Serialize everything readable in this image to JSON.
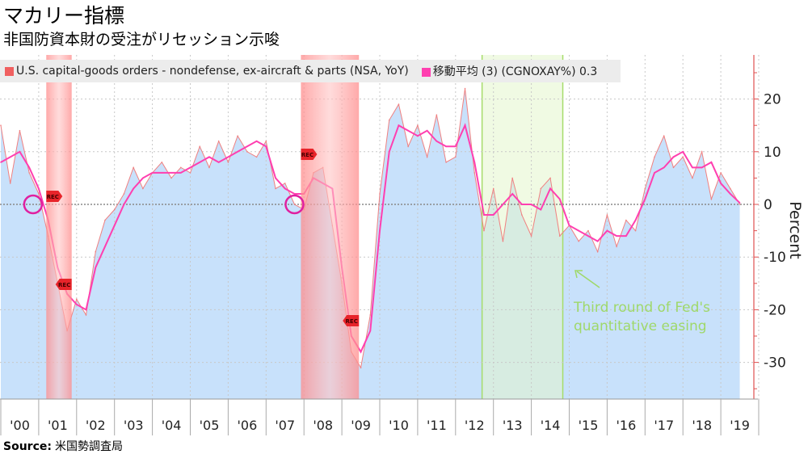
{
  "title": "マカリー指標",
  "subtitle": "非国防資本財の受注がリセッション示唆",
  "source_label": "Source:",
  "source": "米国勢調査局",
  "colors": {
    "raw_line": "#f08080",
    "ma_line": "#ff3fb0",
    "area": "#c8e1fb",
    "recession": "#ff9a9a",
    "qe": "#e4f5cc",
    "qe_border": "#a6dc6a",
    "axis": "#e05050",
    "annotation": "#9fd86a",
    "circle": "#e020a0"
  },
  "chart_data": {
    "type": "line",
    "ylabel": "Percent",
    "ylim": [
      -37,
      28
    ],
    "xlim": [
      2000,
      2019.9
    ],
    "grid": true,
    "legend_position": "top-left",
    "yticks": [
      20,
      10,
      0,
      -10,
      -20,
      -30
    ],
    "xtick_labels": [
      "'00",
      "'01",
      "'02",
      "'03",
      "'04",
      "'05",
      "'06",
      "'07",
      "'08",
      "'09",
      "'10",
      "'11",
      "'12",
      "'13",
      "'14",
      "'15",
      "'16",
      "'17",
      "'18",
      "'19"
    ],
    "x": [
      2000,
      2000.25,
      2000.5,
      2000.75,
      2001,
      2001.25,
      2001.5,
      2001.75,
      2002,
      2002.25,
      2002.5,
      2002.75,
      2003,
      2003.25,
      2003.5,
      2003.75,
      2004,
      2004.25,
      2004.5,
      2004.75,
      2005,
      2005.25,
      2005.5,
      2005.75,
      2006,
      2006.25,
      2006.5,
      2006.75,
      2007,
      2007.25,
      2007.5,
      2007.75,
      2008,
      2008.25,
      2008.5,
      2008.75,
      2009,
      2009.25,
      2009.5,
      2009.75,
      2010,
      2010.25,
      2010.5,
      2010.75,
      2011,
      2011.25,
      2011.5,
      2011.75,
      2012,
      2012.25,
      2012.5,
      2012.75,
      2013,
      2013.25,
      2013.5,
      2013.75,
      2014,
      2014.25,
      2014.5,
      2014.75,
      2015,
      2015.25,
      2015.5,
      2015.75,
      2016,
      2016.25,
      2016.5,
      2016.75,
      2017,
      2017.25,
      2017.5,
      2017.75,
      2018,
      2018.25,
      2018.5,
      2018.75,
      2019,
      2019.25,
      2019.5
    ],
    "series": [
      {
        "name": "U.S. capital-goods orders - nondefense, ex-aircraft & parts (NSA, YoY)",
        "values": [
          15,
          4,
          14,
          6,
          2,
          -6,
          -15,
          -24,
          -18,
          -21,
          -9,
          -3,
          -1,
          2,
          7,
          3,
          6,
          8,
          5,
          7,
          6,
          11,
          7,
          12,
          8,
          13,
          10,
          9,
          12,
          3,
          4,
          0,
          -1,
          6,
          7,
          -4,
          -15,
          -28,
          -31,
          -21,
          2,
          16,
          19,
          11,
          15,
          9,
          17,
          8,
          9,
          22,
          6,
          -5,
          3,
          -7,
          5,
          -2,
          -6,
          3,
          5,
          -6,
          -4,
          -7,
          -5,
          -9,
          -2,
          -8,
          -3,
          -5,
          3,
          9,
          13,
          7,
          9,
          5,
          10,
          1,
          6,
          3,
          0
        ]
      },
      {
        "name": "移動平均 (3) (CGNOXAY%) 0.3",
        "values": [
          8,
          9,
          10,
          7,
          3,
          -3,
          -12,
          -17,
          -19,
          -20,
          -12,
          -8,
          -4,
          0,
          3,
          5,
          6,
          6,
          6,
          6,
          7,
          8,
          9,
          8,
          9,
          10,
          11,
          12,
          11,
          5,
          3,
          2,
          2,
          5,
          4,
          3,
          -12,
          -25,
          -28,
          -24,
          -5,
          10,
          15,
          14,
          13,
          14,
          12,
          11,
          11,
          15,
          8,
          -2,
          -2,
          0,
          2,
          0,
          0,
          -1,
          3,
          1,
          -4,
          -5,
          -6,
          -7,
          -5,
          -6,
          -6,
          -3,
          1,
          6,
          7,
          9,
          10,
          7,
          7,
          8,
          4,
          2,
          0.3
        ]
      }
    ],
    "shaded_periods": [
      {
        "kind": "recession",
        "start": 2001.2,
        "end": 2001.87,
        "label": "REC"
      },
      {
        "kind": "recession",
        "start": 2007.92,
        "end": 2009.45,
        "label": "REC"
      },
      {
        "kind": "qe",
        "start": 2012.7,
        "end": 2014.83
      }
    ],
    "annotation": {
      "text_line1": "Third round of Fed's",
      "text_line2": "quantitative easing",
      "x": 2014.9,
      "y": -12.5
    },
    "highlight_circles": [
      {
        "x": 2000.85,
        "y": 0
      },
      {
        "x": 2007.75,
        "y": 0
      }
    ]
  }
}
